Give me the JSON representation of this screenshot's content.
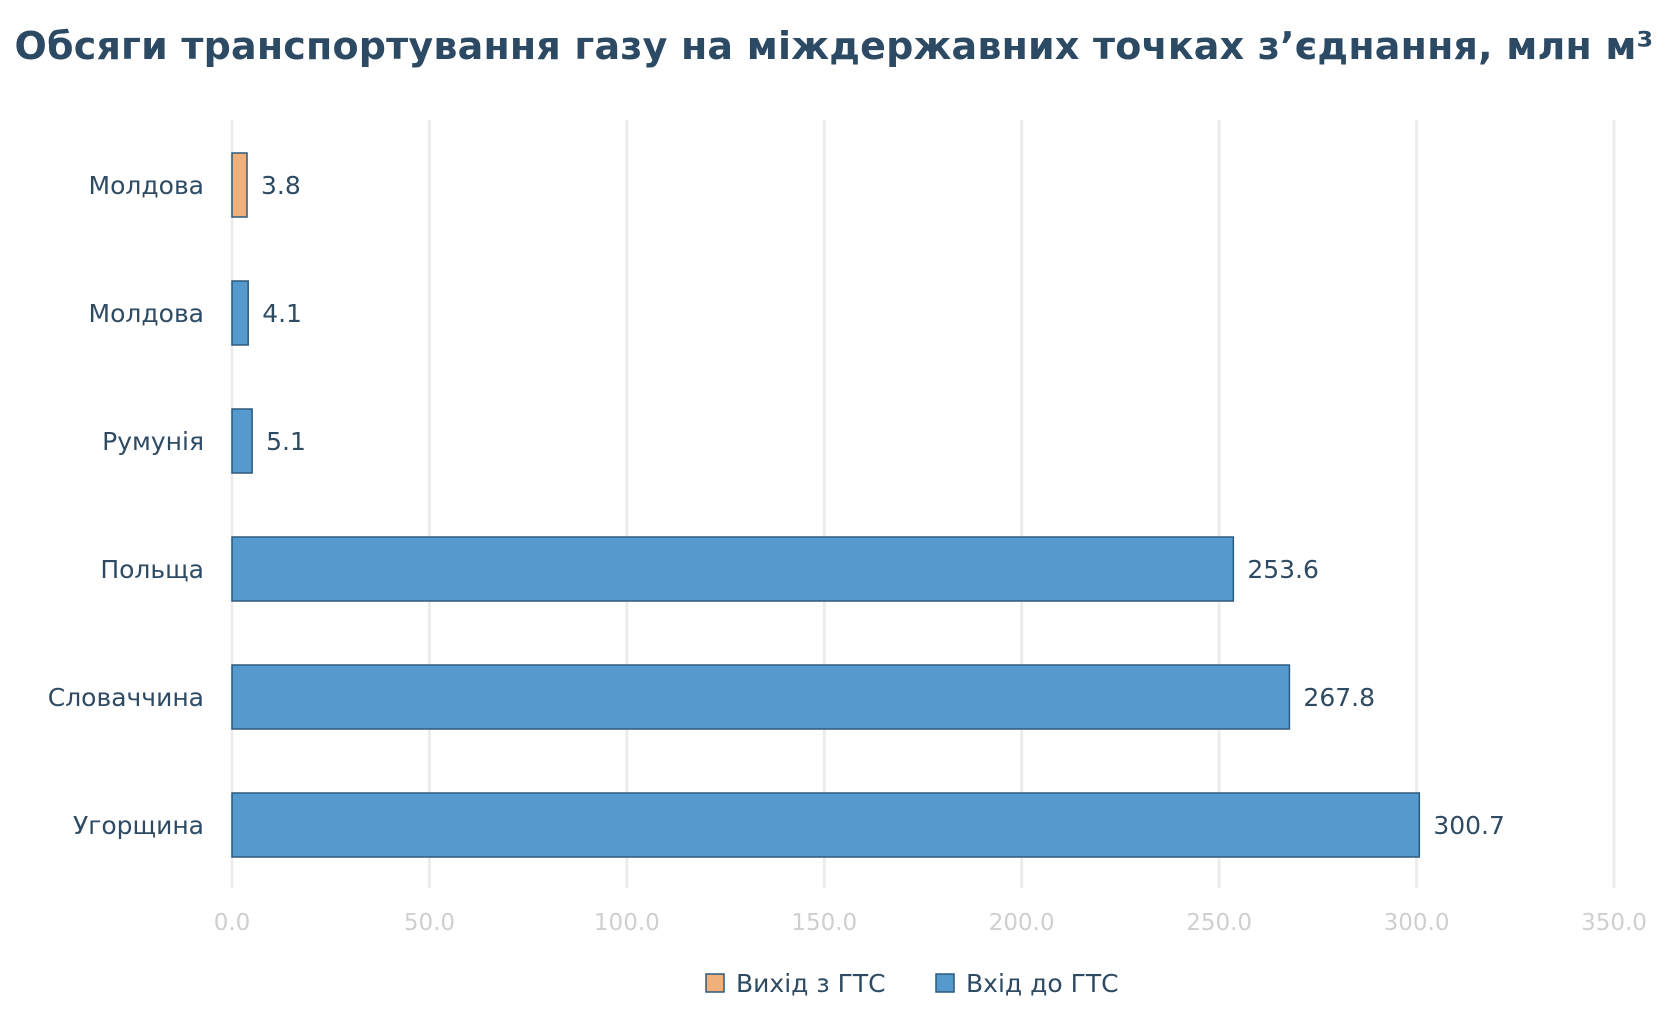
{
  "chart_data": {
    "type": "bar",
    "orientation": "horizontal",
    "title": "Обсяги транспортування газу на міждержавних точках з’єднання, млн м³",
    "categories": [
      "Молдова",
      "Молдова",
      "Румунія",
      "Польща",
      "Словаччина",
      "Угорщина"
    ],
    "values": [
      3.8,
      4.1,
      5.1,
      253.6,
      267.8,
      300.7
    ],
    "value_labels": [
      "3.8",
      "4.1",
      "5.1",
      "253.6",
      "267.8",
      "300.7"
    ],
    "series": [
      {
        "name": "Вихід з ГТС",
        "color": "#f0b07c",
        "values": [
          3.8,
          null,
          null,
          null,
          null,
          null
        ]
      },
      {
        "name": "Вхід до ГТС",
        "color": "#5699cc",
        "values": [
          null,
          4.1,
          5.1,
          253.6,
          267.8,
          300.7
        ]
      }
    ],
    "xlim": [
      0,
      350
    ],
    "xticks": [
      0,
      50,
      100,
      150,
      200,
      250,
      300,
      350
    ],
    "xtick_labels": [
      "0.0",
      "50.0",
      "100.0",
      "150.0",
      "200.0",
      "250.0",
      "300.0",
      "350.0"
    ],
    "xlabel": "",
    "ylabel": "",
    "grid": true,
    "legend_position": "bottom-center",
    "colors": {
      "title": "#2c4a63",
      "text": "#2e4b63",
      "tick": "#cfcfcf",
      "grid": "#ececec",
      "bar_stroke": "#2c5b80"
    }
  }
}
